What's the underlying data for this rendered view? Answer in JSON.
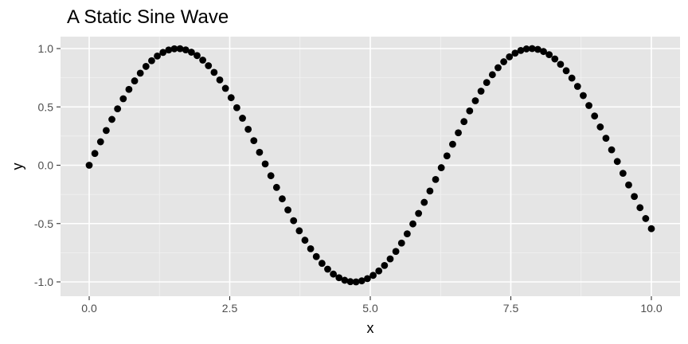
{
  "chart_data": {
    "type": "scatter",
    "title": "A Static Sine Wave",
    "xlabel": "x",
    "ylabel": "y",
    "xlim": [
      0,
      10
    ],
    "ylim": [
      -1,
      1
    ],
    "x_ticks": [
      0.0,
      2.5,
      5.0,
      7.5,
      10.0
    ],
    "x_tick_labels": [
      "0.0",
      "2.5",
      "5.0",
      "7.5",
      "10.0"
    ],
    "y_ticks": [
      -1.0,
      -0.5,
      0.0,
      0.5,
      1.0
    ],
    "y_tick_labels": [
      "-1.0",
      "-0.5",
      "0.0",
      "0.5",
      "1.0"
    ],
    "grid": true,
    "legend": "none",
    "colors": {
      "panel_background": "#e5e5e5",
      "grid_major": "#ffffff",
      "grid_minor": "#f2f2f2",
      "points": "#000000",
      "tick_label": "#4d4d4d",
      "tick_mark": "#333333"
    },
    "series": [
      {
        "x": [
          0,
          0.101,
          0.202,
          0.303,
          0.404,
          0.505,
          0.606,
          0.707,
          0.808,
          0.909,
          1.01,
          1.111,
          1.212,
          1.313,
          1.414,
          1.515,
          1.616,
          1.717,
          1.818,
          1.919,
          2.02,
          2.121,
          2.222,
          2.323,
          2.424,
          2.525,
          2.626,
          2.727,
          2.828,
          2.929,
          3.03,
          3.131,
          3.232,
          3.333,
          3.434,
          3.535,
          3.636,
          3.737,
          3.838,
          3.939,
          4.04,
          4.141,
          4.242,
          4.343,
          4.444,
          4.545,
          4.646,
          4.747,
          4.848,
          4.949,
          5.051,
          5.152,
          5.253,
          5.354,
          5.455,
          5.556,
          5.657,
          5.758,
          5.859,
          5.96,
          6.061,
          6.162,
          6.263,
          6.364,
          6.465,
          6.566,
          6.667,
          6.768,
          6.869,
          6.97,
          7.071,
          7.172,
          7.273,
          7.374,
          7.475,
          7.576,
          7.677,
          7.778,
          7.879,
          7.98,
          8.081,
          8.182,
          8.283,
          8.384,
          8.485,
          8.586,
          8.687,
          8.788,
          8.889,
          8.99,
          9.091,
          9.192,
          9.293,
          9.394,
          9.495,
          9.596,
          9.697,
          9.798,
          9.899,
          10
        ],
        "y": [
          0,
          0.101,
          0.201,
          0.298,
          0.393,
          0.484,
          0.57,
          0.65,
          0.723,
          0.789,
          0.847,
          0.896,
          0.936,
          0.967,
          0.988,
          0.998,
          0.999,
          0.989,
          0.969,
          0.94,
          0.901,
          0.853,
          0.796,
          0.731,
          0.659,
          0.579,
          0.493,
          0.403,
          0.308,
          0.211,
          0.111,
          0.011,
          -0.09,
          -0.19,
          -0.288,
          -0.383,
          -0.475,
          -0.562,
          -0.643,
          -0.716,
          -0.783,
          -0.841,
          -0.891,
          -0.933,
          -0.964,
          -0.986,
          -0.998,
          -1.0,
          -0.991,
          -0.972,
          -0.944,
          -0.906,
          -0.859,
          -0.803,
          -0.739,
          -0.667,
          -0.588,
          -0.503,
          -0.413,
          -0.318,
          -0.221,
          -0.122,
          -0.021,
          0.08,
          0.18,
          0.278,
          0.374,
          0.466,
          0.553,
          0.635,
          0.709,
          0.776,
          0.836,
          0.887,
          0.929,
          0.961,
          0.984,
          0.997,
          1.0,
          0.993,
          0.975,
          0.948,
          0.911,
          0.865,
          0.81,
          0.747,
          0.676,
          0.597,
          0.512,
          0.422,
          0.328,
          0.231,
          0.132,
          0.032,
          -0.069,
          -0.169,
          -0.268,
          -0.364,
          -0.457,
          -0.544
        ]
      }
    ]
  }
}
